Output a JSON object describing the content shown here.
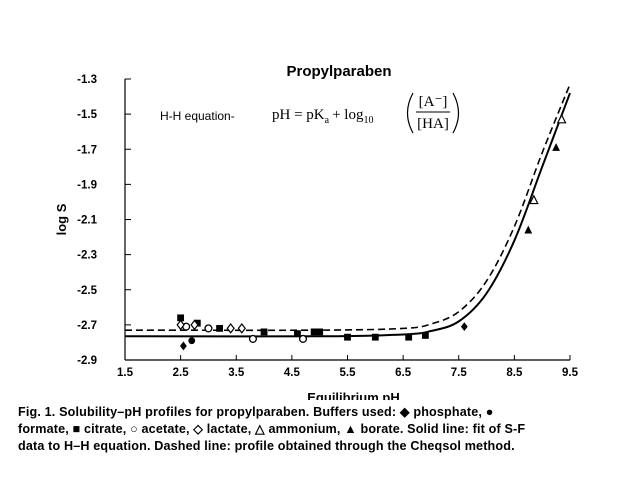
{
  "chart_data": {
    "type": "scatter",
    "title": "Propylparaben",
    "xlabel": "Equilibrium pH",
    "ylabel": "log S",
    "xlim": [
      1.5,
      9.5
    ],
    "ylim": [
      -2.9,
      -1.3
    ],
    "xticks": [
      "1.5",
      "2.5",
      "3.5",
      "4.5",
      "5.5",
      "6.5",
      "7.5",
      "8.5",
      "9.5"
    ],
    "yticks": [
      "-1.3",
      "-1.5",
      "-1.7",
      "-1.9",
      "-2.1",
      "-2.3",
      "-2.5",
      "-2.7",
      "-2.9"
    ],
    "annotation_label": "H-H equation-",
    "equation": {
      "lhs": "pH = pK",
      "sub": "a",
      "plus": "+ log",
      "base": "10",
      "num": "[A⁻]",
      "den": "[HA]"
    },
    "series": [
      {
        "marker": "diamond-filled",
        "x": [
          2.55,
          7.6
        ],
        "y": [
          -2.82,
          -2.71
        ]
      },
      {
        "marker": "circle-filled",
        "x": [
          2.7
        ],
        "y": [
          -2.79
        ]
      },
      {
        "marker": "square-filled",
        "x": [
          2.5,
          2.8,
          3.2,
          4.0,
          4.6,
          4.9,
          5.0,
          5.5,
          6.0,
          6.6,
          6.9
        ],
        "y": [
          -2.66,
          -2.69,
          -2.72,
          -2.74,
          -2.75,
          -2.74,
          -2.74,
          -2.77,
          -2.77,
          -2.77,
          -2.76
        ]
      },
      {
        "marker": "circle-open",
        "x": [
          2.6,
          3.0,
          3.8,
          4.7
        ],
        "y": [
          -2.71,
          -2.72,
          -2.78,
          -2.78
        ]
      },
      {
        "marker": "diamond-open",
        "x": [
          2.5,
          2.75,
          3.4,
          3.6
        ],
        "y": [
          -2.7,
          -2.7,
          -2.72,
          -2.72
        ]
      },
      {
        "marker": "triangle-open",
        "x": [
          8.85,
          9.35
        ],
        "y": [
          -1.99,
          -1.53
        ]
      },
      {
        "marker": "triangle-filled",
        "x": [
          8.75,
          9.25
        ],
        "y": [
          -2.16,
          -1.69
        ]
      }
    ],
    "lines": [
      {
        "style": "solid",
        "x": [
          1.5,
          5.0,
          6.5,
          7.0,
          7.5,
          8.0,
          8.5,
          9.0,
          9.5
        ],
        "y": [
          -2.765,
          -2.765,
          -2.755,
          -2.735,
          -2.68,
          -2.52,
          -2.22,
          -1.8,
          -1.38
        ]
      },
      {
        "style": "dashed",
        "x": [
          1.5,
          5.0,
          6.5,
          7.0,
          7.5,
          8.0,
          8.5,
          9.0,
          9.5
        ],
        "y": [
          -2.73,
          -2.73,
          -2.72,
          -2.695,
          -2.625,
          -2.45,
          -2.14,
          -1.72,
          -1.33
        ]
      }
    ]
  },
  "caption": {
    "lead": "Fig. 1.",
    "line1a": " Solubility–pH profiles for propylparaben. Buffers used: ",
    "phosphate": " phosphate, ",
    "line2a": "formate, ",
    "citrate": " citrate, ",
    "acetate": " acetate, ",
    "lactate": " lactate, ",
    "ammonium": " ammonium, ",
    "borate": " borate. Solid line: fit of S-F",
    "line3": "data to H–H equation. Dashed line: profile obtained through the Cheqsol method."
  },
  "glyphs": {
    "diamond_filled": "◆",
    "circle_filled": "●",
    "square_filled": "■",
    "circle_open": "○",
    "diamond_open": "◇",
    "triangle_open": "△",
    "triangle_filled": "▲"
  }
}
